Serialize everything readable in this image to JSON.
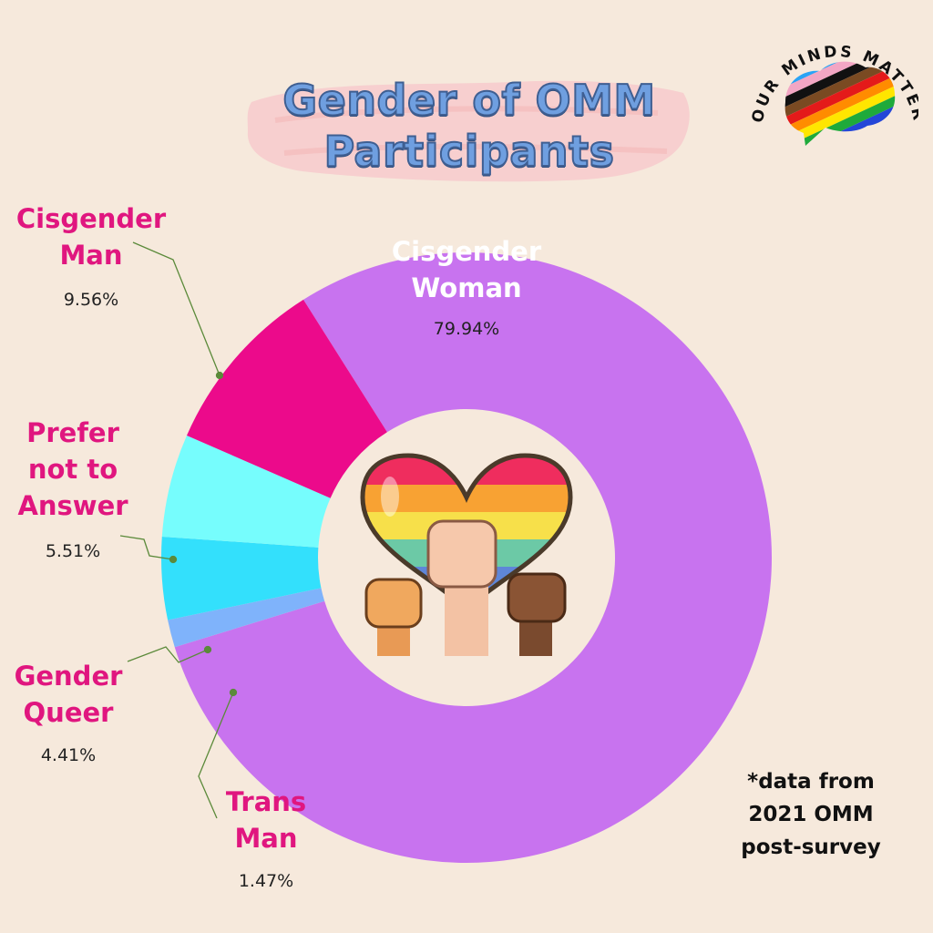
{
  "header": {
    "title_line1": "Gender of OMM",
    "title_line2": "Participants"
  },
  "logo": {
    "text": "OUR MINDS MATTER"
  },
  "footnote": {
    "line1": "*data from",
    "line2": "2021 OMM",
    "line3": "post-survey"
  },
  "colors": {
    "background": "#f6e9dc",
    "cisgender_woman": "#c873ef",
    "cisgender_man": "#ec0a8b",
    "prefer_not": "#76fdfd",
    "gender_queer": "#33e0fc",
    "trans_man": "#7fb3fb",
    "label": "#e0167f"
  },
  "chart_data": {
    "type": "pie",
    "variant": "donut",
    "title": "Gender of OMM Participants",
    "slices": [
      {
        "name_line1": "Cisgender",
        "name_line2": "Woman",
        "value": 79.94,
        "display": "79.94%"
      },
      {
        "name_line1": "Trans",
        "name_line2": "Man",
        "value": 1.47,
        "display": "1.47%"
      },
      {
        "name_line1": "Gender",
        "name_line2": "Queer",
        "value": 4.41,
        "display": "4.41%"
      },
      {
        "name_line1": "Prefer",
        "name_line2": "not to",
        "name_line3": "Answer",
        "value": 5.51,
        "display": "5.51%"
      },
      {
        "name_line1": "Cisgender",
        "name_line2": "Man",
        "value": 9.56,
        "display": "9.56%"
      }
    ]
  }
}
